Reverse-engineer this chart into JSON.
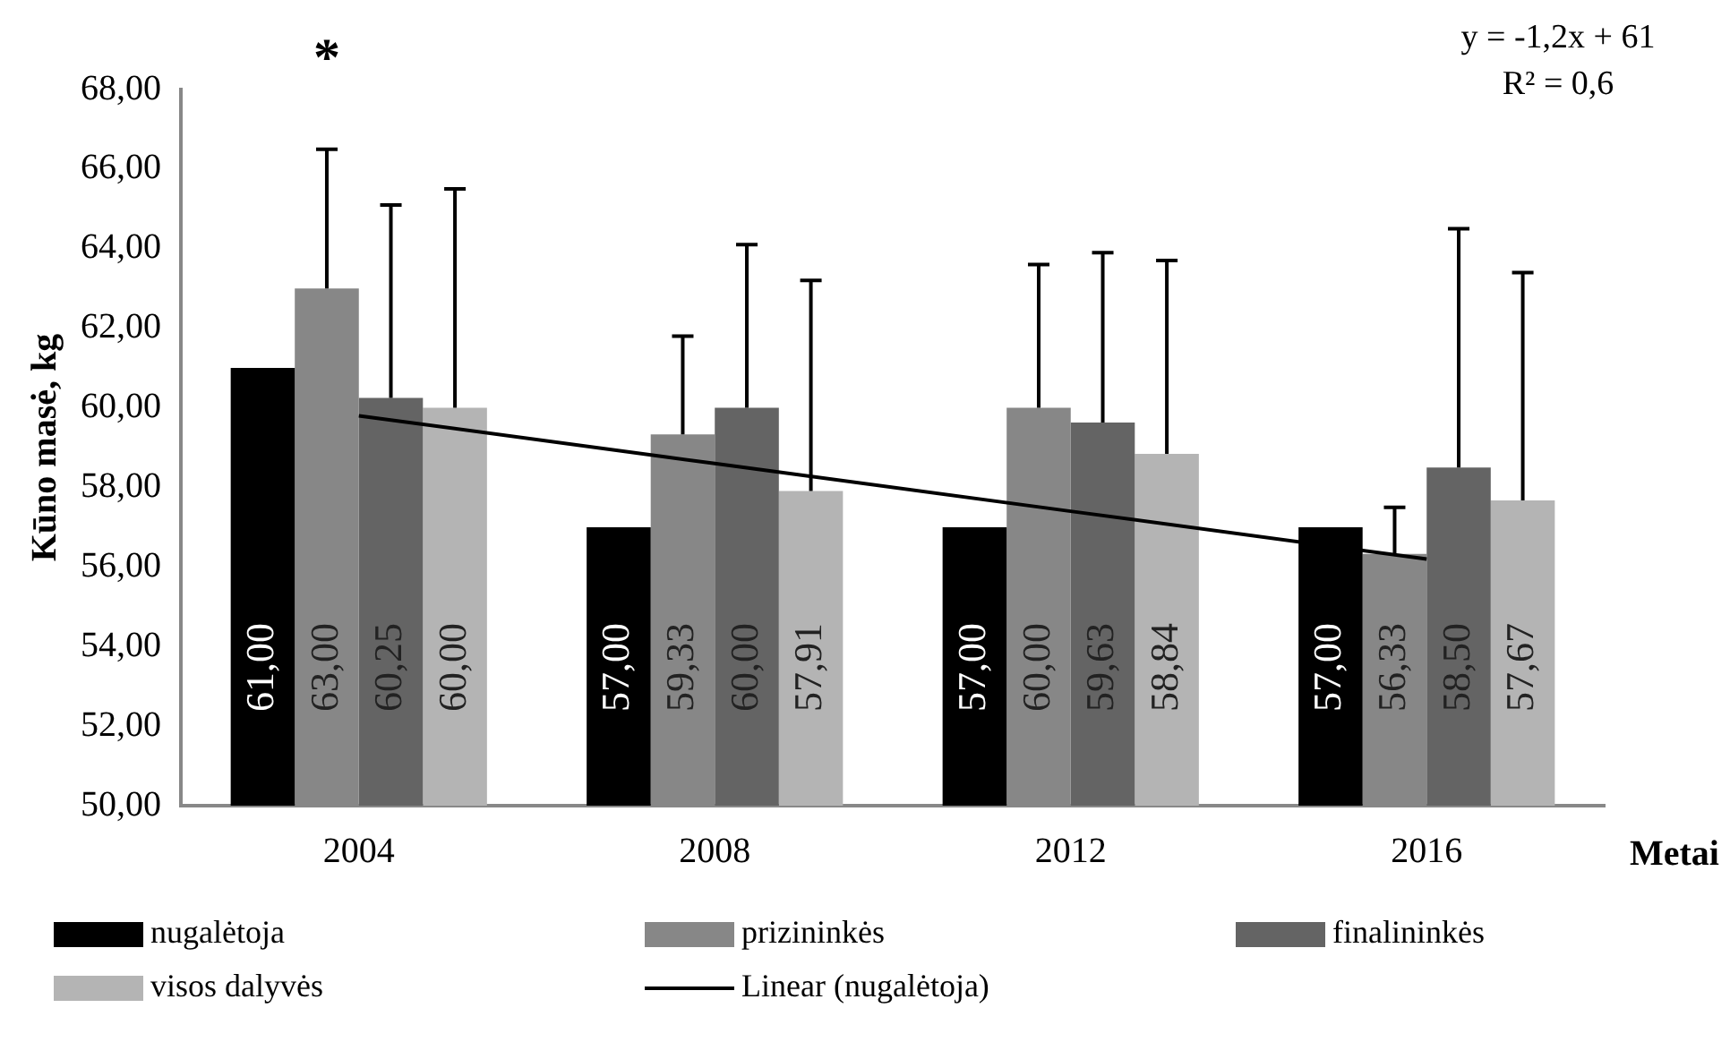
{
  "chart_data": {
    "type": "bar",
    "ylabel": "Kūno masė, kg",
    "xlabel": "Metai",
    "categories": [
      "2004",
      "2008",
      "2012",
      "2016"
    ],
    "ylim": [
      50,
      68
    ],
    "yticks": [
      {
        "value": 50,
        "label": "50,00"
      },
      {
        "value": 52,
        "label": "52,00"
      },
      {
        "value": 54,
        "label": "54,00"
      },
      {
        "value": 56,
        "label": "56,00"
      },
      {
        "value": 58,
        "label": "58,00"
      },
      {
        "value": 60,
        "label": "60,00"
      },
      {
        "value": 62,
        "label": "62,00"
      },
      {
        "value": 64,
        "label": "64,00"
      },
      {
        "value": 66,
        "label": "66,00"
      },
      {
        "value": 68,
        "label": "68,00"
      }
    ],
    "grid": false,
    "legend": "bottom",
    "series": [
      {
        "name": "nugalėtoja",
        "color": "#000000",
        "values": [
          61,
          57,
          57,
          57
        ],
        "value_labels": [
          "61,00",
          "57,00",
          "57,00",
          "57,00"
        ]
      },
      {
        "name": "prizininkės",
        "color": "#878787",
        "values": [
          63,
          59.33,
          60,
          56.33
        ],
        "value_labels": [
          "63,00",
          "59,33",
          "60,00",
          "56,33"
        ],
        "errors": [
          [
            63,
            66.5
          ],
          [
            59.33,
            61.8
          ],
          [
            60,
            63.6
          ],
          [
            56.33,
            57.5
          ]
        ]
      },
      {
        "name": "finalininkės",
        "color": "#646464",
        "values": [
          60.25,
          60,
          59.63,
          58.5
        ],
        "value_labels": [
          "60,25",
          "60,00",
          "59,63",
          "58,50"
        ],
        "errors": [
          [
            60.25,
            65.1
          ],
          [
            60,
            64.1
          ],
          [
            59.63,
            63.9
          ],
          [
            58.5,
            64.5
          ]
        ]
      },
      {
        "name": "visos dalyvės",
        "color": "#b4b4b4",
        "values": [
          60,
          57.91,
          58.84,
          57.67
        ],
        "value_labels": [
          "60,00",
          "57,91",
          "58,84",
          "57,67"
        ],
        "errors": [
          [
            60,
            65.5
          ],
          [
            57.91,
            63.2
          ],
          [
            58.84,
            63.7
          ],
          [
            57.67,
            63.4
          ]
        ]
      },
      {
        "name": "Linear (nugalėtoja)",
        "type": "line",
        "color": "#000000",
        "values": [
          59.8,
          58.6,
          57.4,
          56.2
        ],
        "marker": "none"
      }
    ],
    "annotations": [
      "*",
      "y = -1,2x + 61",
      "R² = 0,6"
    ]
  }
}
